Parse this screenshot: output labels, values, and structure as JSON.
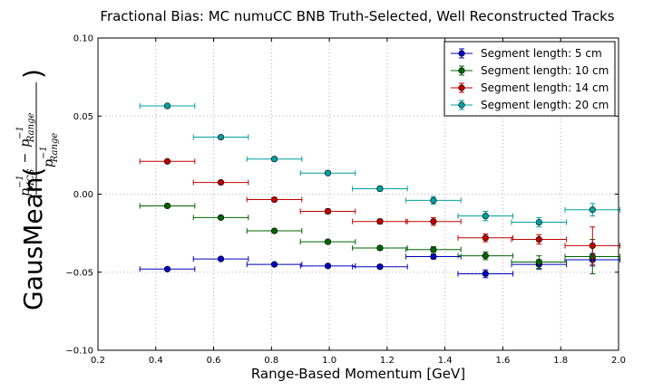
{
  "chart_data": {
    "type": "scatter",
    "title": "Fractional Bias: MC numuCC BNB Truth-Selected, Well Reconstructed Tracks",
    "xlabel": "Range-Based Momentum [GeV]",
    "ylabel": {
      "prefix": "GausMean(",
      "num_p": "p",
      "num_exp1": "−1",
      "num_sub1": "MCS",
      "num_minus": "−",
      "num_p2": "p",
      "num_exp2": "−1",
      "num_sub2": "Range",
      "den_p": "p",
      "den_exp": "−1",
      "den_sub": "Range",
      "suffix": ")"
    },
    "xlim": [
      0.2,
      2.0
    ],
    "ylim": [
      -0.1,
      0.1
    ],
    "xticks": [
      "0.2",
      "0.4",
      "0.6",
      "0.8",
      "1.0",
      "1.2",
      "1.4",
      "1.6",
      "1.8",
      "2.0"
    ],
    "yticks": [
      "−0.10",
      "−0.05",
      "0.00",
      "0.05",
      "0.10"
    ],
    "grid": true,
    "legend_position": "top-right",
    "x_halfwidth": 0.095,
    "series": [
      {
        "name": "Segment length: 5 cm",
        "color": "#0000c0",
        "x": [
          0.44,
          0.625,
          0.81,
          0.995,
          1.175,
          1.36,
          1.54,
          1.725,
          1.91
        ],
        "y": [
          -0.048,
          -0.0415,
          -0.045,
          -0.046,
          -0.0465,
          -0.04,
          -0.051,
          -0.045,
          -0.042
        ],
        "yerr": [
          0.001,
          0.001,
          0.001,
          0.001,
          0.0012,
          0.0015,
          0.0025,
          0.003,
          0.004
        ]
      },
      {
        "name": "Segment length: 10 cm",
        "color": "#006400",
        "x": [
          0.44,
          0.625,
          0.81,
          0.995,
          1.175,
          1.36,
          1.54,
          1.725,
          1.91
        ],
        "y": [
          -0.0075,
          -0.015,
          -0.0235,
          -0.0305,
          -0.0345,
          -0.0355,
          -0.0395,
          -0.0435,
          -0.04
        ],
        "yerr": [
          0.001,
          0.001,
          0.001,
          0.0012,
          0.0013,
          0.0018,
          0.0025,
          0.004,
          0.011
        ]
      },
      {
        "name": "Segment length: 14 cm",
        "color": "#c00000",
        "x": [
          0.44,
          0.625,
          0.81,
          0.995,
          1.175,
          1.36,
          1.54,
          1.725,
          1.91
        ],
        "y": [
          0.021,
          0.0075,
          -0.0035,
          -0.011,
          -0.0175,
          -0.0175,
          -0.028,
          -0.029,
          -0.033
        ],
        "yerr": [
          0.001,
          0.001,
          0.001,
          0.0015,
          0.0015,
          0.0025,
          0.0025,
          0.003,
          0.012
        ]
      },
      {
        "name": "Segment length: 20 cm",
        "color": "#00a0a0",
        "x": [
          0.44,
          0.625,
          0.81,
          0.995,
          1.175,
          1.36,
          1.54,
          1.725,
          1.91
        ],
        "y": [
          0.0565,
          0.0365,
          0.0225,
          0.0135,
          0.0035,
          -0.004,
          -0.014,
          -0.018,
          -0.01
        ],
        "yerr": [
          0.001,
          0.001,
          0.001,
          0.0012,
          0.0015,
          0.0025,
          0.003,
          0.003,
          0.004
        ]
      }
    ]
  }
}
